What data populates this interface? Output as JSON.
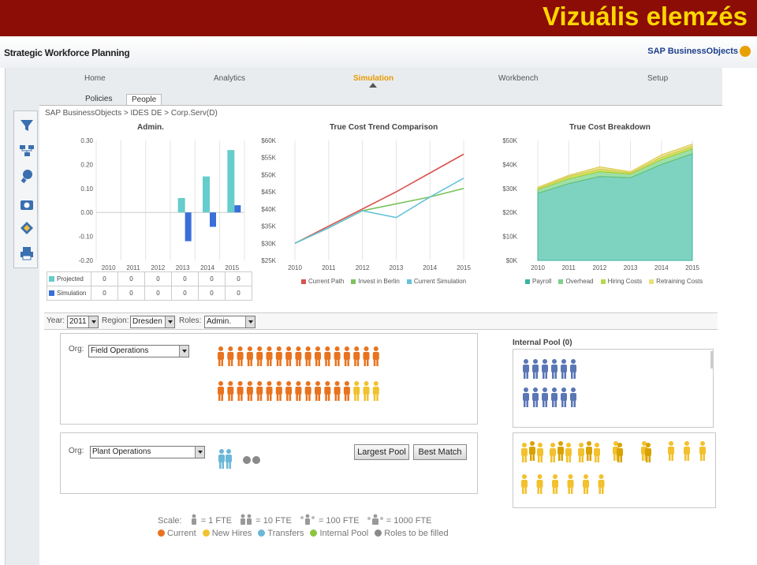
{
  "slide": {
    "title": "Vizuális elemzés"
  },
  "app": {
    "title": "Strategic Workforce Planning",
    "logo": "SAP BusinessObjects"
  },
  "nav": {
    "items": [
      "Home",
      "Analytics",
      "Simulation",
      "Workbench",
      "Setup"
    ],
    "active": "Simulation"
  },
  "subtabs": {
    "items": [
      "Policies",
      "People"
    ],
    "active": "People"
  },
  "breadcrumb": "SAP BusinessObjects > IDES DE > Corp.Serv(D)",
  "sidebar": {
    "icons": [
      "filter-icon",
      "hierarchy-icon",
      "bulb-icon",
      "camera-icon",
      "tag-icon",
      "printer-icon"
    ]
  },
  "colors": {
    "orange": "#e8731f",
    "yellow": "#f2c12e",
    "blue": "#5b76b5",
    "teal": "#66cccc",
    "red": "#d9534f",
    "green": "#7cc35e"
  },
  "chart_data": [
    {
      "type": "bar",
      "title": "Admin.",
      "categories": [
        "2010",
        "2011",
        "2012",
        "2013",
        "2014",
        "2015"
      ],
      "ytick_labels": [
        "0.30",
        "0.20",
        "0.10",
        "0.00",
        "-0.10",
        "-0.20"
      ],
      "ylim": [
        -0.2,
        0.3
      ],
      "series": [
        {
          "name": "Projected",
          "values": [
            0,
            0,
            0,
            0.06,
            0.15,
            0.26
          ]
        },
        {
          "name": "Simulation",
          "values": [
            0,
            0,
            0,
            -0.12,
            -0.06,
            0.03
          ]
        }
      ],
      "table": {
        "rows": [
          {
            "label": "Projected",
            "values": [
              "0",
              "0",
              "0",
              "0",
              "0",
              "0"
            ]
          },
          {
            "label": "Simulation",
            "values": [
              "0",
              "0",
              "0",
              "0",
              "0",
              "0"
            ]
          }
        ]
      }
    },
    {
      "type": "line",
      "title": "True Cost Trend Comparison",
      "x": [
        "2010",
        "2011",
        "2012",
        "2013",
        "2014",
        "2015"
      ],
      "ytick_labels": [
        "$60K",
        "$55K",
        "$50K",
        "$45K",
        "$40K",
        "$35K",
        "$30K",
        "$25K"
      ],
      "ylim": [
        25,
        60
      ],
      "series": [
        {
          "name": "Current Path",
          "values": [
            30,
            35,
            40,
            45,
            50.5,
            56
          ]
        },
        {
          "name": "Invest in Berlin",
          "values": [
            30,
            34.5,
            39.5,
            41.5,
            43.5,
            46
          ]
        },
        {
          "name": "Current Simulation",
          "values": [
            30,
            34.5,
            39.5,
            37.5,
            43.5,
            49
          ]
        }
      ]
    },
    {
      "type": "area",
      "title": "True Cost Breakdown",
      "x": [
        "2010",
        "2011",
        "2012",
        "2013",
        "2014",
        "2015"
      ],
      "ytick_labels": [
        "$50K",
        "$40K",
        "$30K",
        "$20K",
        "$10K",
        "$0K"
      ],
      "ylim": [
        0,
        50
      ],
      "series": [
        {
          "name": "Payroll",
          "values": [
            28,
            32,
            35,
            34.5,
            40,
            44.5
          ]
        },
        {
          "name": "Overhead",
          "values": [
            1.5,
            2,
            2,
            1.5,
            2,
            2
          ]
        },
        {
          "name": "Hiring Costs",
          "values": [
            0.5,
            1,
            1,
            0.5,
            1,
            1
          ]
        },
        {
          "name": "Retraining Costs",
          "values": [
            0.5,
            0.5,
            1,
            0.5,
            1,
            1
          ]
        }
      ]
    }
  ],
  "filters": {
    "year_label": "Year:",
    "year": "2011",
    "region_label": "Region:",
    "region": "Dresden",
    "roles_label": "Roles:",
    "roles": "Admin."
  },
  "org1": {
    "label": "Org:",
    "value": "Field Operations",
    "orange_count": 31,
    "yellow_count": 3
  },
  "org2": {
    "label": "Org:",
    "value": "Plant Operations",
    "buttons": {
      "largest": "Largest Pool",
      "best": "Best Match"
    }
  },
  "pool": {
    "title": "Internal Pool (0)"
  },
  "scale": {
    "label": "Scale:",
    "items": [
      "= 1 FTE",
      "= 10 FTE",
      "= 100 FTE",
      "= 1000 FTE"
    ]
  },
  "legend": [
    {
      "label": "Current",
      "color": "#e8731f"
    },
    {
      "label": "New Hires",
      "color": "#f2c12e"
    },
    {
      "label": "Transfers",
      "color": "#6ab7d8"
    },
    {
      "label": "Internal Pool",
      "color": "#8cc63f"
    },
    {
      "label": "Roles to be filled",
      "color": "#8a8a8a"
    }
  ]
}
